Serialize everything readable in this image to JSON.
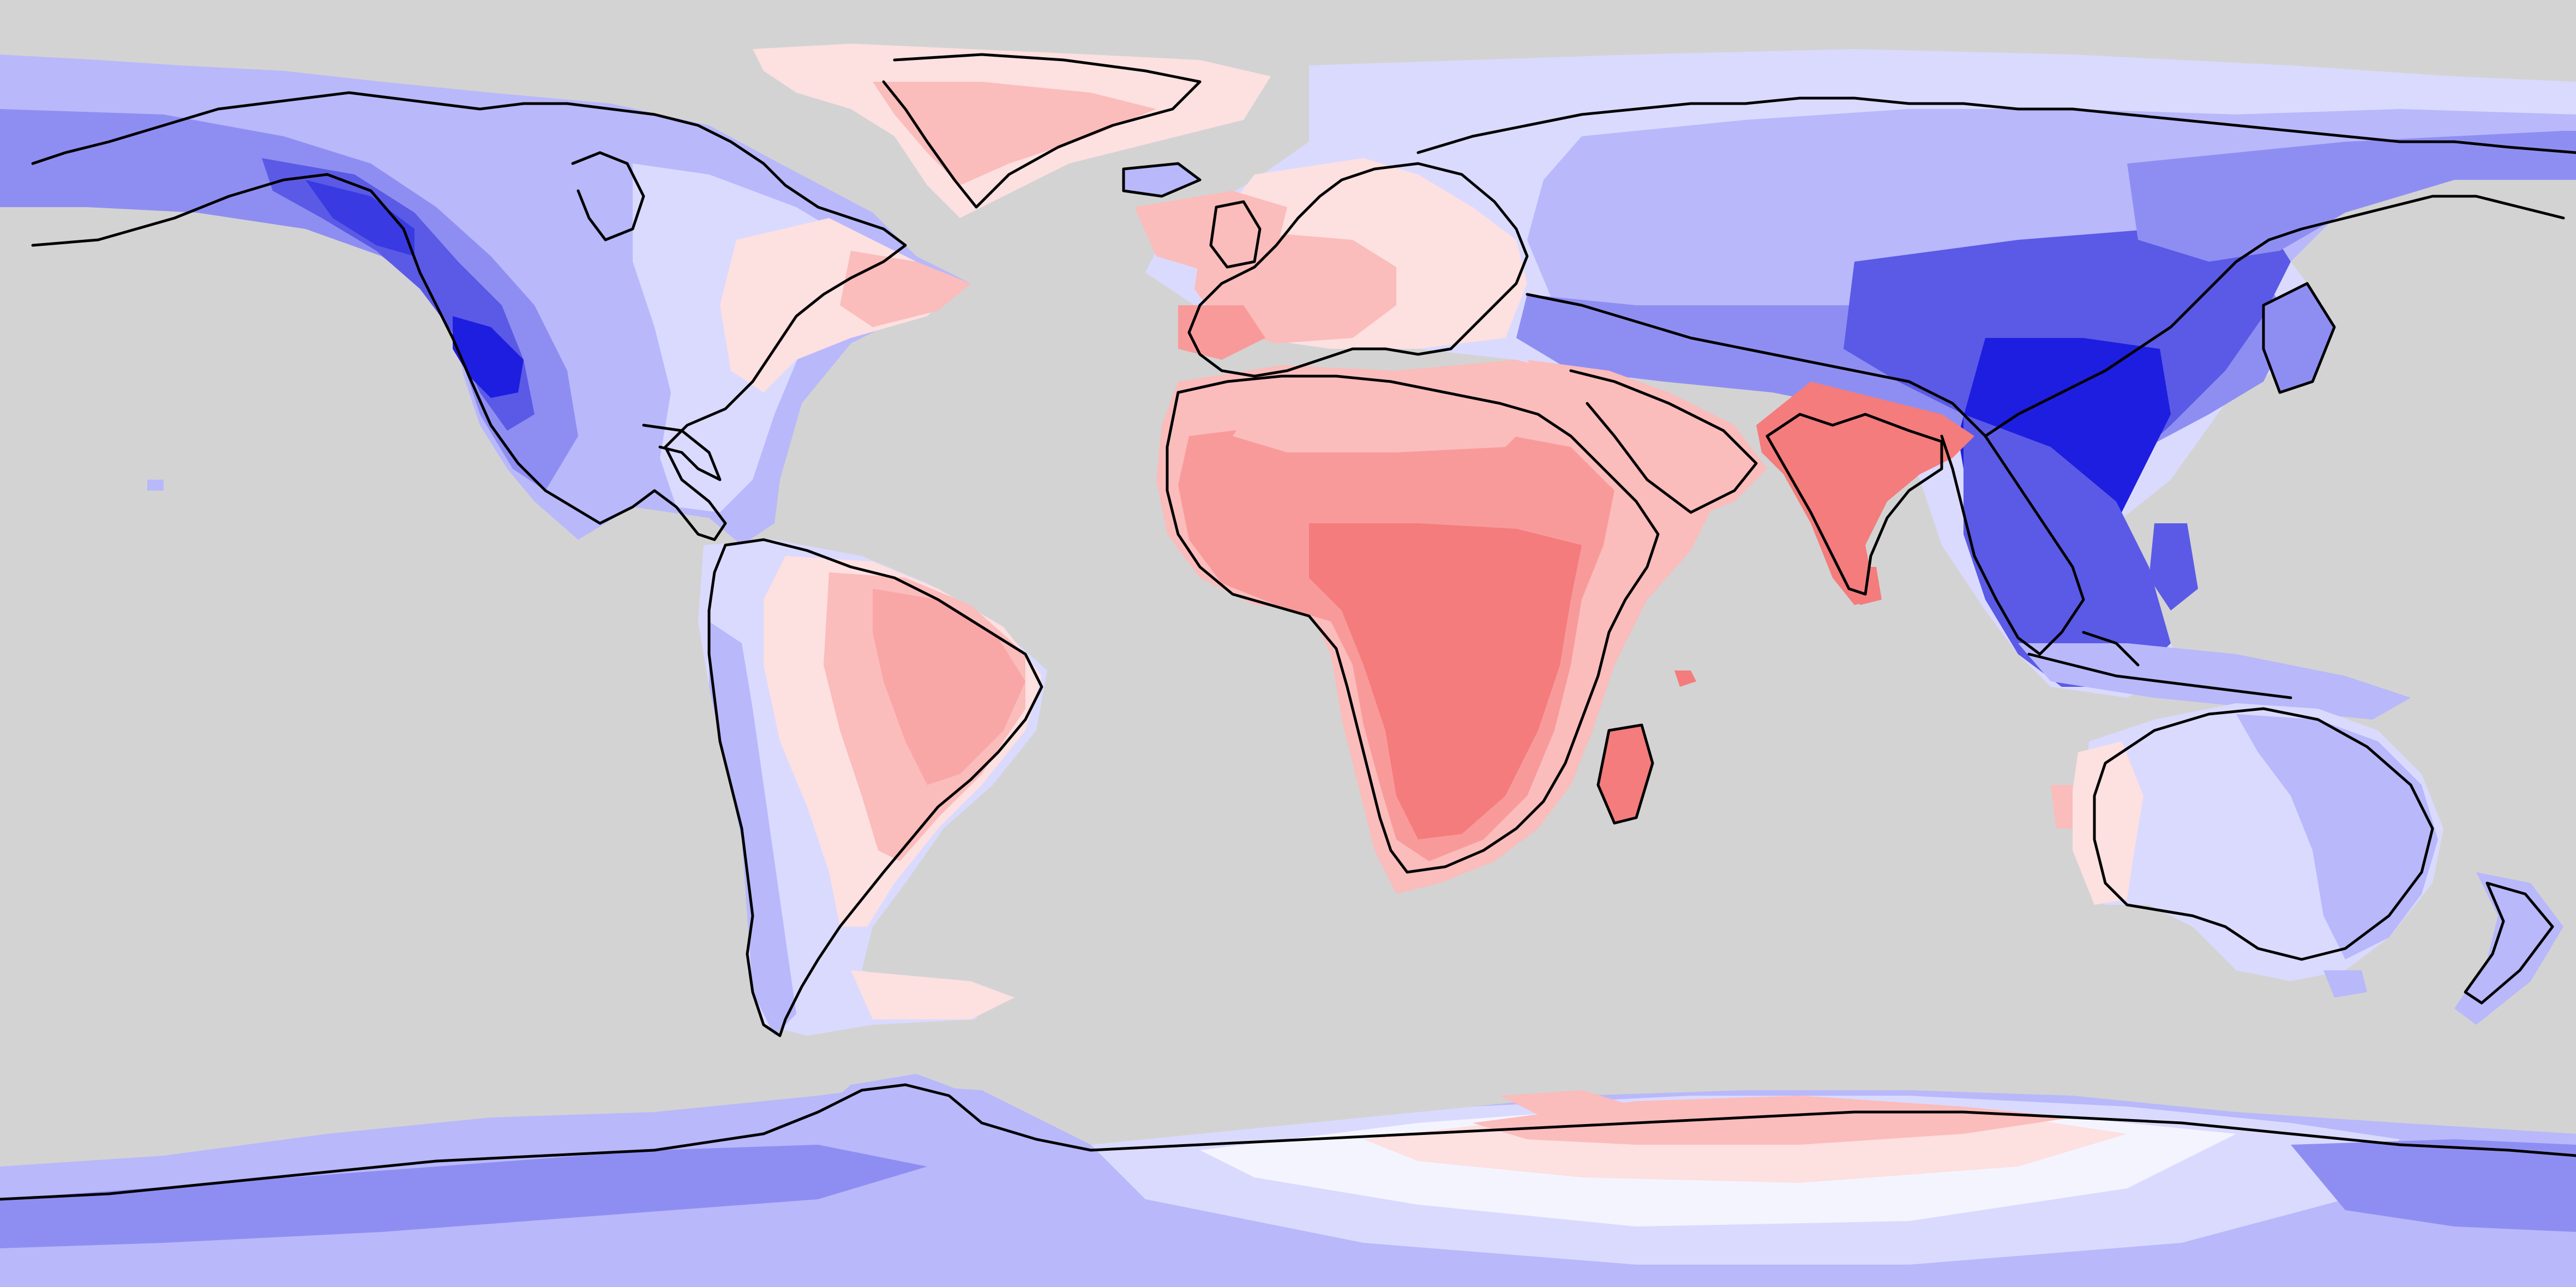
{
  "map": {
    "projection": "equirectangular",
    "ocean_color": "#d3d3d3",
    "coastline_color": "#000000",
    "palette": {
      "red_strong": "#f47c7c",
      "red_mid": "#f99a9a",
      "red_light": "#fbbcbc",
      "red_pale": "#fde0e0",
      "white": "#f7f7ff",
      "blue_pale": "#dadaff",
      "blue_light": "#b8b8fb",
      "blue_mid": "#8e8ef2",
      "blue_deep": "#5a5ae6",
      "blue_strong": "#1e1ee0"
    }
  }
}
